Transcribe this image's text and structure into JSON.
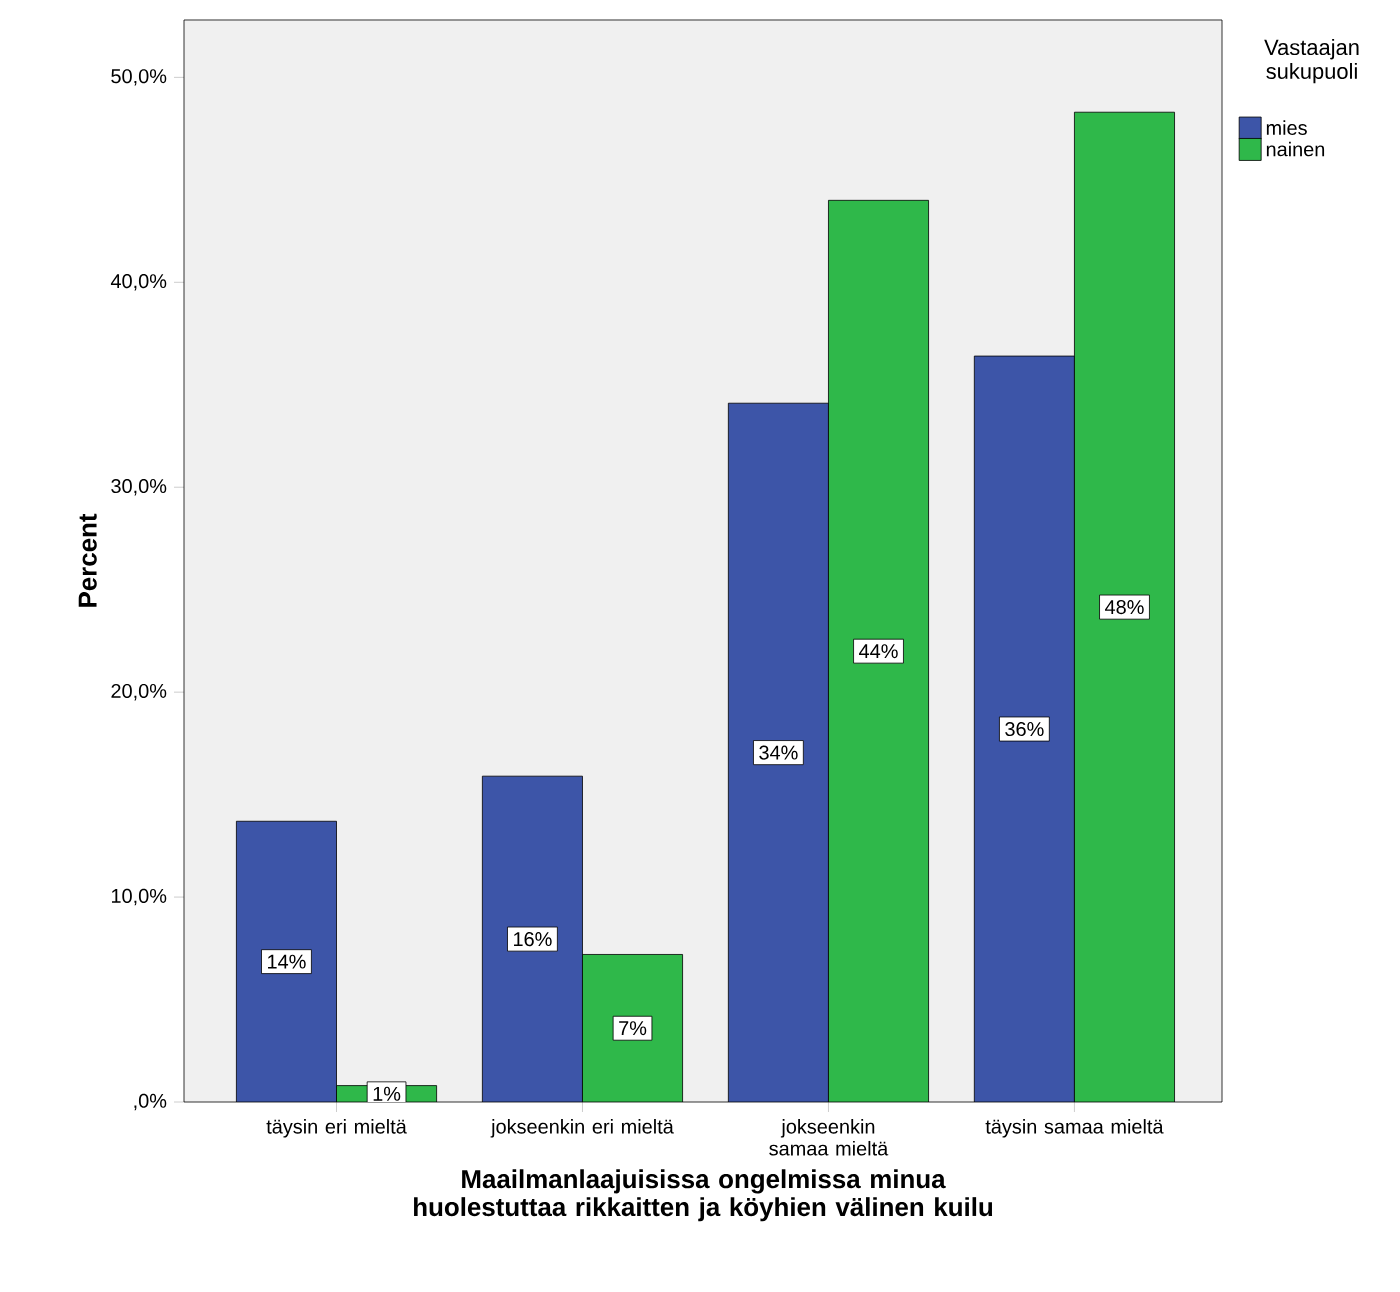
{
  "chart_data": {
    "type": "bar",
    "xlabel": "Maailmanlaajuisissa ongelmissa minua huolestuttaa rikkaitten ja köyhien välinen kuilu",
    "ylabel": "Percent",
    "legend_title": "Vastaajan sukupuoli",
    "categories": [
      "täysin eri mieltä",
      "jokseenkin eri mieltä",
      "jokseenkin samaa mieltä",
      "täysin samaa mieltä"
    ],
    "series": [
      {
        "name": "mies",
        "color": "#3d55a8",
        "values": [
          13.7,
          15.9,
          34.1,
          36.4
        ],
        "value_labels": [
          "14%",
          "16%",
          "34%",
          "36%"
        ]
      },
      {
        "name": "nainen",
        "color": "#2fb84a",
        "values": [
          0.8,
          7.2,
          44.0,
          48.3
        ],
        "value_labels": [
          "1%",
          "7%",
          "44%",
          "48%"
        ]
      }
    ],
    "ylim": [
      0,
      52.8
    ],
    "yticks": [
      {
        "value": 0,
        "label": ",0%"
      },
      {
        "value": 10,
        "label": "10,0%"
      },
      {
        "value": 20,
        "label": "20,0%"
      },
      {
        "value": 30,
        "label": "30,0%"
      },
      {
        "value": 40,
        "label": "40,0%"
      },
      {
        "value": 50,
        "label": "50,0%"
      }
    ],
    "grid": false,
    "legend": "right"
  }
}
